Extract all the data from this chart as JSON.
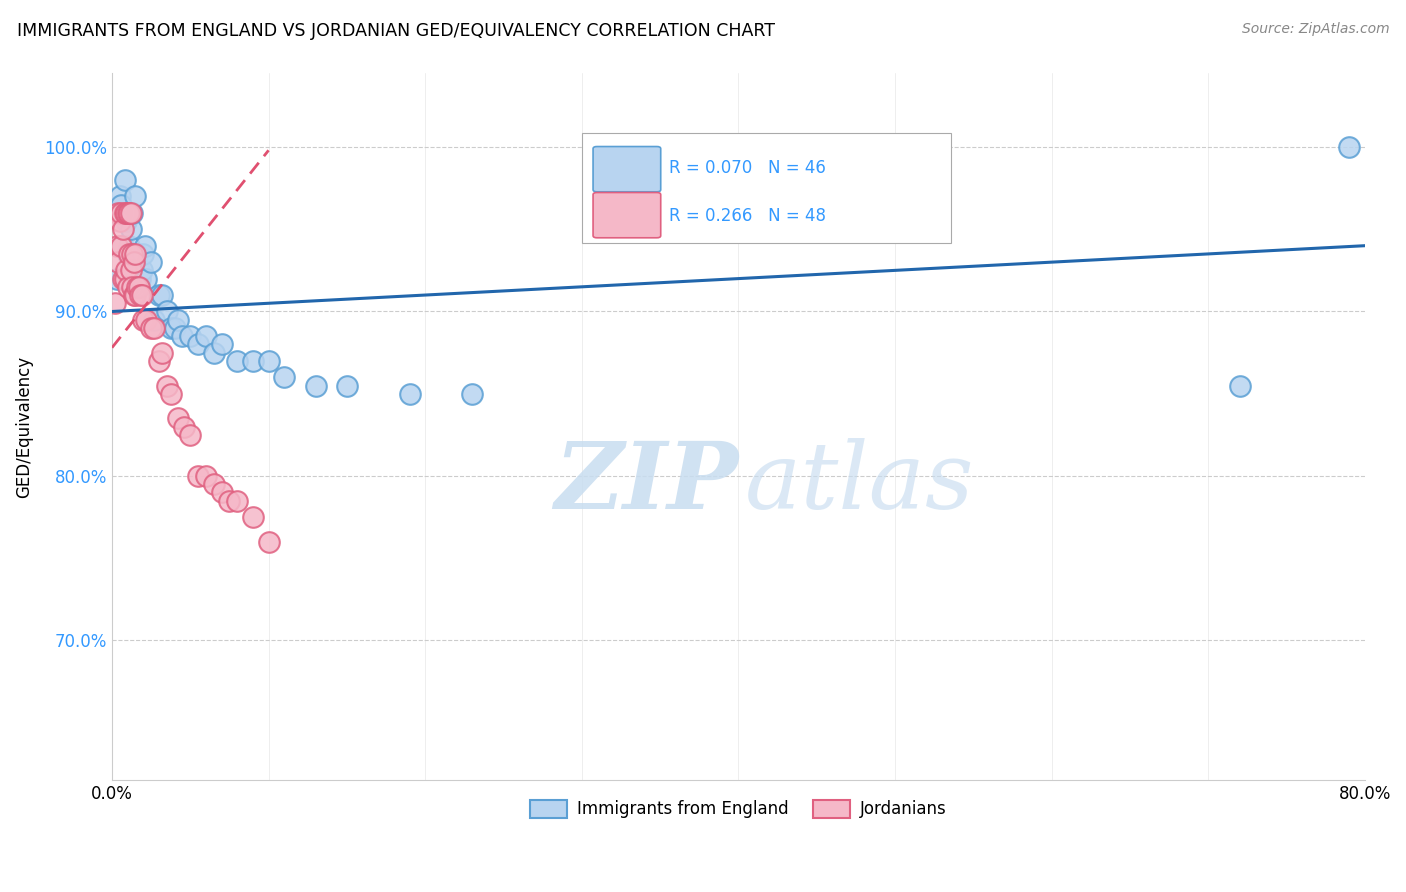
{
  "title": "IMMIGRANTS FROM ENGLAND VS JORDANIAN GED/EQUIVALENCY CORRELATION CHART",
  "source": "Source: ZipAtlas.com",
  "ylabel": "GED/Equivalency",
  "ytick_labels": [
    "70.0%",
    "80.0%",
    "90.0%",
    "100.0%"
  ],
  "ytick_values": [
    0.7,
    0.8,
    0.9,
    1.0
  ],
  "xlim": [
    0.0,
    0.8
  ],
  "ylim": [
    0.615,
    1.045
  ],
  "legend_label_bottom1": "Immigrants from England",
  "legend_label_bottom2": "Jordanians",
  "watermark_zip": "ZIP",
  "watermark_atlas": "atlas",
  "blue_line_color": "#2166ac",
  "pink_line_color": "#e05070",
  "grid_color": "#cccccc",
  "blue_scatter_x": [
    0.003,
    0.004,
    0.005,
    0.006,
    0.007,
    0.008,
    0.009,
    0.01,
    0.01,
    0.011,
    0.012,
    0.012,
    0.013,
    0.014,
    0.015,
    0.016,
    0.017,
    0.018,
    0.019,
    0.02,
    0.021,
    0.022,
    0.025,
    0.027,
    0.03,
    0.032,
    0.035,
    0.038,
    0.04,
    0.042,
    0.045,
    0.05,
    0.055,
    0.06,
    0.065,
    0.07,
    0.08,
    0.09,
    0.1,
    0.11,
    0.13,
    0.15,
    0.19,
    0.23,
    0.72,
    0.79
  ],
  "blue_scatter_y": [
    0.92,
    0.96,
    0.97,
    0.965,
    0.94,
    0.98,
    0.955,
    0.935,
    0.96,
    0.94,
    0.95,
    0.93,
    0.96,
    0.935,
    0.97,
    0.935,
    0.925,
    0.92,
    0.925,
    0.935,
    0.94,
    0.92,
    0.93,
    0.895,
    0.91,
    0.91,
    0.9,
    0.89,
    0.89,
    0.895,
    0.885,
    0.885,
    0.88,
    0.885,
    0.875,
    0.88,
    0.87,
    0.87,
    0.87,
    0.86,
    0.855,
    0.855,
    0.85,
    0.85,
    0.855,
    1.0
  ],
  "pink_scatter_x": [
    0.002,
    0.003,
    0.004,
    0.004,
    0.005,
    0.006,
    0.006,
    0.007,
    0.007,
    0.008,
    0.008,
    0.009,
    0.009,
    0.01,
    0.01,
    0.011,
    0.011,
    0.012,
    0.012,
    0.013,
    0.013,
    0.014,
    0.014,
    0.015,
    0.015,
    0.016,
    0.017,
    0.018,
    0.019,
    0.02,
    0.022,
    0.025,
    0.027,
    0.03,
    0.032,
    0.035,
    0.038,
    0.042,
    0.046,
    0.05,
    0.055,
    0.06,
    0.065,
    0.07,
    0.075,
    0.08,
    0.09,
    0.1
  ],
  "pink_scatter_y": [
    0.905,
    0.94,
    0.93,
    0.96,
    0.955,
    0.94,
    0.96,
    0.92,
    0.95,
    0.92,
    0.96,
    0.925,
    0.96,
    0.915,
    0.96,
    0.935,
    0.96,
    0.925,
    0.96,
    0.915,
    0.935,
    0.91,
    0.93,
    0.91,
    0.935,
    0.915,
    0.915,
    0.91,
    0.91,
    0.895,
    0.895,
    0.89,
    0.89,
    0.87,
    0.875,
    0.855,
    0.85,
    0.835,
    0.83,
    0.825,
    0.8,
    0.8,
    0.795,
    0.79,
    0.785,
    0.785,
    0.775,
    0.76
  ],
  "blue_line_x0": 0.0,
  "blue_line_x1": 0.8,
  "blue_line_y0": 0.9,
  "blue_line_y1": 0.94,
  "pink_line_x0": 0.0,
  "pink_line_x1": 0.1,
  "pink_line_y0": 0.878,
  "pink_line_y1": 0.998
}
